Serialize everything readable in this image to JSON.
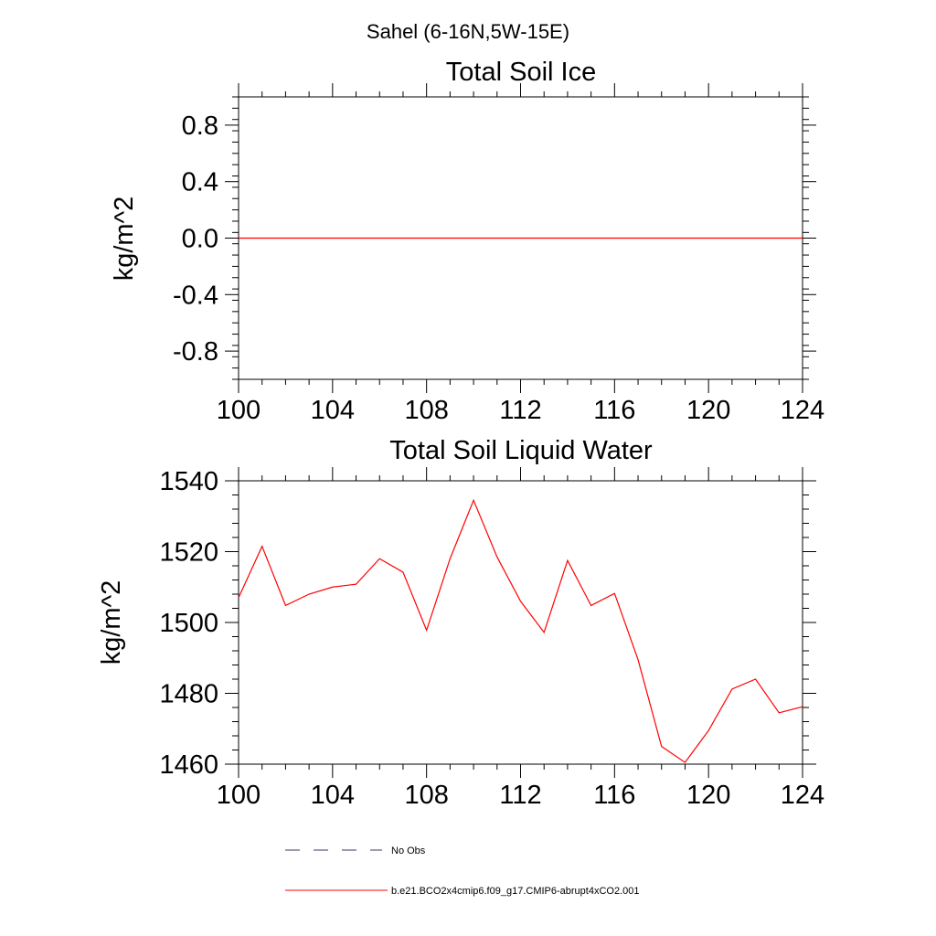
{
  "figure": {
    "suptitle": "Sahel (6-16N,5W-15E)",
    "line_color": "#ff0000",
    "obs_color": "#3a3a6a"
  },
  "chart_data": [
    {
      "type": "line",
      "title": "Total Soil Ice",
      "ylabel": "kg/m^2",
      "xlabel": "",
      "xlim": [
        100,
        124
      ],
      "ylim": [
        -1,
        1
      ],
      "xticks": [
        100,
        104,
        108,
        112,
        116,
        120,
        124
      ],
      "xtick_labels": [
        "100",
        "104",
        "108",
        "112",
        "116",
        "120",
        "124"
      ],
      "yticks": [
        0.8,
        0.4,
        0.0,
        -0.4,
        -0.8
      ],
      "ytick_labels": [
        "0.8",
        "0.4",
        "0.0",
        "-0.4",
        "-0.8"
      ],
      "grid": false,
      "series": [
        {
          "name": "b.e21.BCO2x4cmip6.f09_g17.CMIP6-abrupt4xCO2.001",
          "x": [
            100,
            124
          ],
          "values": [
            0,
            0
          ]
        }
      ]
    },
    {
      "type": "line",
      "title": "Total Soil Liquid Water",
      "ylabel": "kg/m^2",
      "xlabel": "",
      "xlim": [
        100,
        124
      ],
      "ylim": [
        1460,
        1540
      ],
      "xticks": [
        100,
        104,
        108,
        112,
        116,
        120,
        124
      ],
      "xtick_labels": [
        "100",
        "104",
        "108",
        "112",
        "116",
        "120",
        "124"
      ],
      "yticks": [
        1540,
        1520,
        1500,
        1480,
        1460
      ],
      "ytick_labels": [
        "1540",
        "1520",
        "1500",
        "1480",
        "1460"
      ],
      "grid": false,
      "series": [
        {
          "name": "b.e21.BCO2x4cmip6.f09_g17.CMIP6-abrupt4xCO2.001",
          "x": [
            100,
            101,
            102,
            103,
            104,
            105,
            106,
            107,
            108,
            109,
            110,
            111,
            112,
            113,
            114,
            115,
            116,
            117,
            118,
            119,
            120,
            121,
            122,
            123,
            124
          ],
          "values": [
            1507,
            1521.5,
            1504.8,
            1508,
            1510,
            1510.8,
            1518,
            1514.2,
            1497.8,
            1518,
            1534.5,
            1518.5,
            1506,
            1497.2,
            1517.5,
            1504.8,
            1508.2,
            1489.5,
            1465,
            1460.5,
            1469.5,
            1481.2,
            1484,
            1474.5,
            1476.2
          ]
        }
      ]
    }
  ],
  "legend": {
    "placement": "bottom-center",
    "entries": [
      {
        "label": "No Obs",
        "style": "dashed"
      },
      {
        "label": "b.e21.BCO2x4cmip6.f09_g17.CMIP6-abrupt4xCO2.001",
        "style": "solid"
      }
    ]
  }
}
